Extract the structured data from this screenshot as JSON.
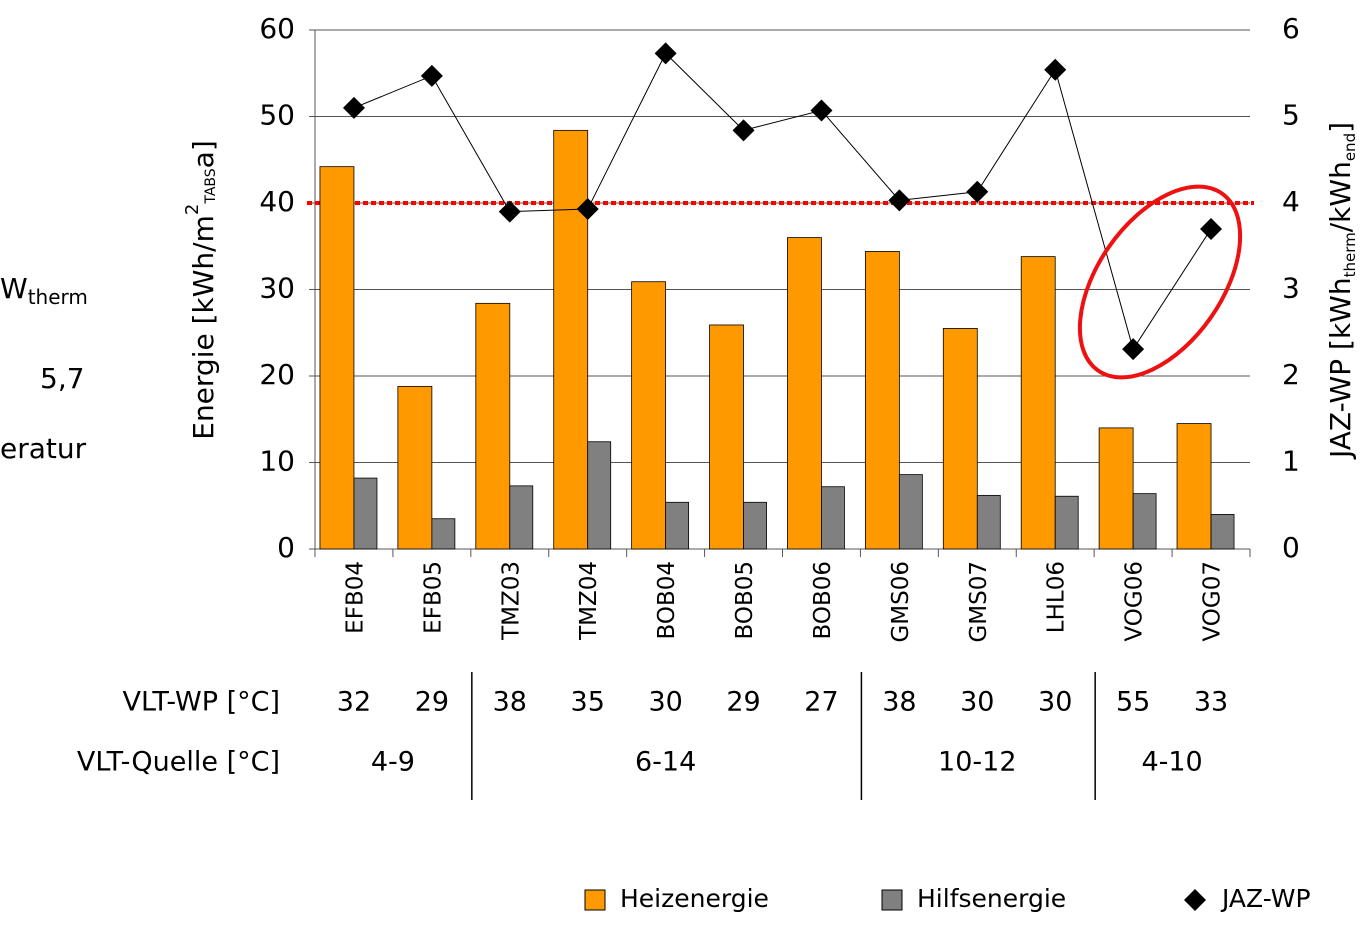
{
  "cropped_text": [
    "W",
    "therm",
    "5,7",
    "eratur"
  ],
  "chart_data": {
    "type": "bar",
    "categories": [
      "EFB04",
      "EFB05",
      "TMZ03",
      "TMZ04",
      "BOB04",
      "BOB05",
      "BOB06",
      "GMS06",
      "GMS07",
      "LHL06",
      "VOG06",
      "VOG07"
    ],
    "series": [
      {
        "name": "Heizenergie",
        "color": "#ff9900",
        "values": [
          44.2,
          18.8,
          28.4,
          48.4,
          30.9,
          25.9,
          36.0,
          34.4,
          25.5,
          33.8,
          14.0,
          14.5
        ]
      },
      {
        "name": "Hilfsenergie",
        "color": "#808080",
        "values": [
          8.2,
          3.5,
          7.3,
          12.4,
          5.4,
          5.4,
          7.2,
          8.6,
          6.2,
          6.1,
          6.4,
          4.0
        ]
      },
      {
        "name": "JAZ-WP",
        "color": "#000000",
        "type": "line",
        "axis": "y2",
        "values": [
          5.1,
          5.47,
          3.9,
          3.93,
          5.73,
          4.84,
          5.07,
          4.03,
          4.13,
          5.54,
          2.31,
          3.7
        ]
      }
    ],
    "ylabel": [
      "Energie [kWh/m",
      "2",
      "TABS",
      "a]"
    ],
    "y2label": [
      "JAZ-WP [kWh",
      "therm",
      "/kWh",
      "end",
      "]"
    ],
    "ylim": [
      0,
      60
    ],
    "yticks": [
      0,
      10,
      20,
      30,
      40,
      50,
      60
    ],
    "y2lim": [
      0,
      6
    ],
    "y2ticks": [
      0,
      1,
      2,
      3,
      4,
      5,
      6
    ],
    "grid": true,
    "reference_line": {
      "value": 40,
      "color": "#ff0000"
    },
    "legend": "bottom",
    "table": {
      "rows": [
        {
          "label": "VLT-WP [°C]",
          "values": [
            32,
            29,
            38,
            35,
            30,
            29,
            27,
            38,
            30,
            30,
            55,
            33
          ]
        },
        {
          "label": "VLT-Quelle [°C]",
          "groups": [
            {
              "label": "4-9",
              "span": 2
            },
            {
              "label": "6-14",
              "span": 5
            },
            {
              "label": "10-12",
              "span": 3
            },
            {
              "label": "4-10",
              "span": 2
            }
          ]
        }
      ]
    }
  }
}
